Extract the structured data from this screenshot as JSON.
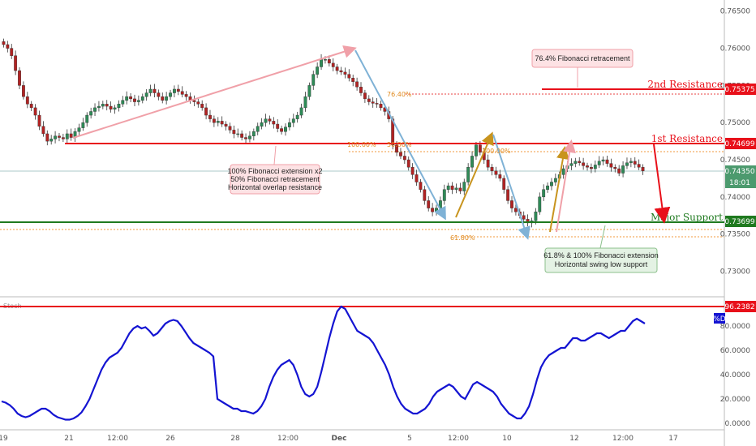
{
  "chart_data": {
    "type": "candlestick",
    "instrument_hint": "",
    "price_axis": {
      "ylim": [
        0.727,
        0.7665
      ],
      "ticks": [
        "0.76500",
        "0.76000",
        "0.75500",
        "0.75000",
        "0.74500",
        "0.74000",
        "0.73500",
        "0.73000"
      ]
    },
    "x_axis": {
      "ticks": [
        "19",
        "21",
        "12:00",
        "26",
        "28",
        "12:00",
        "Dec",
        "5",
        "12:00",
        "10",
        "12",
        "12:00",
        "17"
      ]
    },
    "current_price": {
      "value": "0.74350",
      "countdown": "18:01"
    },
    "levels": [
      {
        "name": "2nd Resistance",
        "value": 0.75375,
        "label": "0.75375",
        "color": "#e8101a"
      },
      {
        "name": "1st Resistance",
        "value": 0.74699,
        "label": "0.74699",
        "color": "#e8101a"
      },
      {
        "name": "Major Support",
        "value": 0.73699,
        "label": "0.73699",
        "color": "#1f7a1f"
      }
    ],
    "fib_labels": [
      "76.40%",
      "100.00%",
      "50.00%",
      "100.00%",
      "61.80%"
    ],
    "annotations": {
      "resistance_box": [
        "100% Fibonacci extension x2",
        "50% Fibonacci retracement",
        "Horizontal overlap resistance"
      ],
      "support_box": [
        "61.8% & 100% Fibonacci extension",
        "Horizontal swing low support"
      ],
      "top_box": "76.4% Fibonacci retracement"
    },
    "closes": [
      0.7605,
      0.76,
      0.759,
      0.757,
      0.755,
      0.7535,
      0.7525,
      0.752,
      0.751,
      0.7495,
      0.7485,
      0.7475,
      0.7478,
      0.7482,
      0.748,
      0.7478,
      0.7485,
      0.748,
      0.7488,
      0.7493,
      0.75,
      0.751,
      0.7515,
      0.752,
      0.7522,
      0.7525,
      0.7522,
      0.7518,
      0.752,
      0.7525,
      0.753,
      0.7535,
      0.7532,
      0.7528,
      0.753,
      0.7535,
      0.754,
      0.7545,
      0.754,
      0.7535,
      0.753,
      0.7535,
      0.754,
      0.7545,
      0.7542,
      0.7538,
      0.7535,
      0.753,
      0.7528,
      0.7525,
      0.752,
      0.751,
      0.7505,
      0.75,
      0.7502,
      0.7498,
      0.7495,
      0.749,
      0.7485,
      0.7485,
      0.748,
      0.7478,
      0.7482,
      0.7488,
      0.7495,
      0.75,
      0.7505,
      0.7502,
      0.7498,
      0.7492,
      0.7488,
      0.7494,
      0.75,
      0.7505,
      0.751,
      0.752,
      0.7535,
      0.755,
      0.7565,
      0.7575,
      0.7585,
      0.7585,
      0.758,
      0.7575,
      0.757,
      0.7568,
      0.7565,
      0.756,
      0.7555,
      0.7548,
      0.754,
      0.7532,
      0.7528,
      0.7526,
      0.7525,
      0.752,
      0.7515,
      0.7505,
      0.747,
      0.746,
      0.7455,
      0.745,
      0.744,
      0.743,
      0.742,
      0.741,
      0.7395,
      0.7385,
      0.738,
      0.7385,
      0.7395,
      0.741,
      0.7415,
      0.741,
      0.7412,
      0.7408,
      0.742,
      0.744,
      0.7455,
      0.747,
      0.746,
      0.745,
      0.744,
      0.7435,
      0.743,
      0.7425,
      0.741,
      0.7395,
      0.7385,
      0.738,
      0.7375,
      0.737,
      0.7365,
      0.7368,
      0.738,
      0.74,
      0.741,
      0.7415,
      0.742,
      0.7425,
      0.743,
      0.7438,
      0.7442,
      0.7445,
      0.7448,
      0.7446,
      0.7442,
      0.744,
      0.7438,
      0.7443,
      0.7448,
      0.745,
      0.7445,
      0.744,
      0.7438,
      0.7432,
      0.7442,
      0.7446,
      0.7448,
      0.7444,
      0.744,
      0.7435
    ],
    "stoch_axis": {
      "ylim": [
        0,
        100
      ],
      "ticks": [
        "80.0000",
        "60.0000",
        "40.0000",
        "20.0000",
        "0.0000"
      ],
      "level_label": "96.2382",
      "tag": "%D",
      "name": "Stoch"
    },
    "stoch_d": [
      18,
      17,
      15,
      12,
      8,
      6,
      5,
      6,
      8,
      10,
      12,
      12,
      10,
      7,
      5,
      4,
      3,
      3,
      4,
      6,
      9,
      14,
      20,
      28,
      36,
      44,
      50,
      54,
      56,
      58,
      62,
      68,
      74,
      78,
      80,
      78,
      79,
      76,
      72,
      74,
      78,
      82,
      84,
      85,
      84,
      80,
      75,
      70,
      66,
      64,
      62,
      60,
      58,
      55,
      20,
      18,
      16,
      14,
      12,
      12,
      10,
      10,
      9,
      8,
      10,
      14,
      20,
      30,
      38,
      44,
      48,
      50,
      52,
      48,
      40,
      30,
      24,
      22,
      24,
      30,
      42,
      56,
      70,
      82,
      92,
      96,
      94,
      88,
      82,
      76,
      74,
      72,
      70,
      66,
      60,
      54,
      48,
      40,
      30,
      22,
      16,
      12,
      10,
      8,
      8,
      10,
      12,
      16,
      22,
      26,
      28,
      30,
      32,
      30,
      26,
      22,
      20,
      26,
      32,
      34,
      32,
      30,
      28,
      26,
      22,
      16,
      12,
      8,
      6,
      4,
      4,
      8,
      14,
      24,
      36,
      46,
      52,
      56,
      58,
      60,
      62,
      62,
      66,
      70,
      70,
      68,
      68,
      70,
      72,
      74,
      74,
      72,
      70,
      72,
      74,
      76,
      76,
      80,
      84,
      86,
      84,
      82
    ]
  }
}
